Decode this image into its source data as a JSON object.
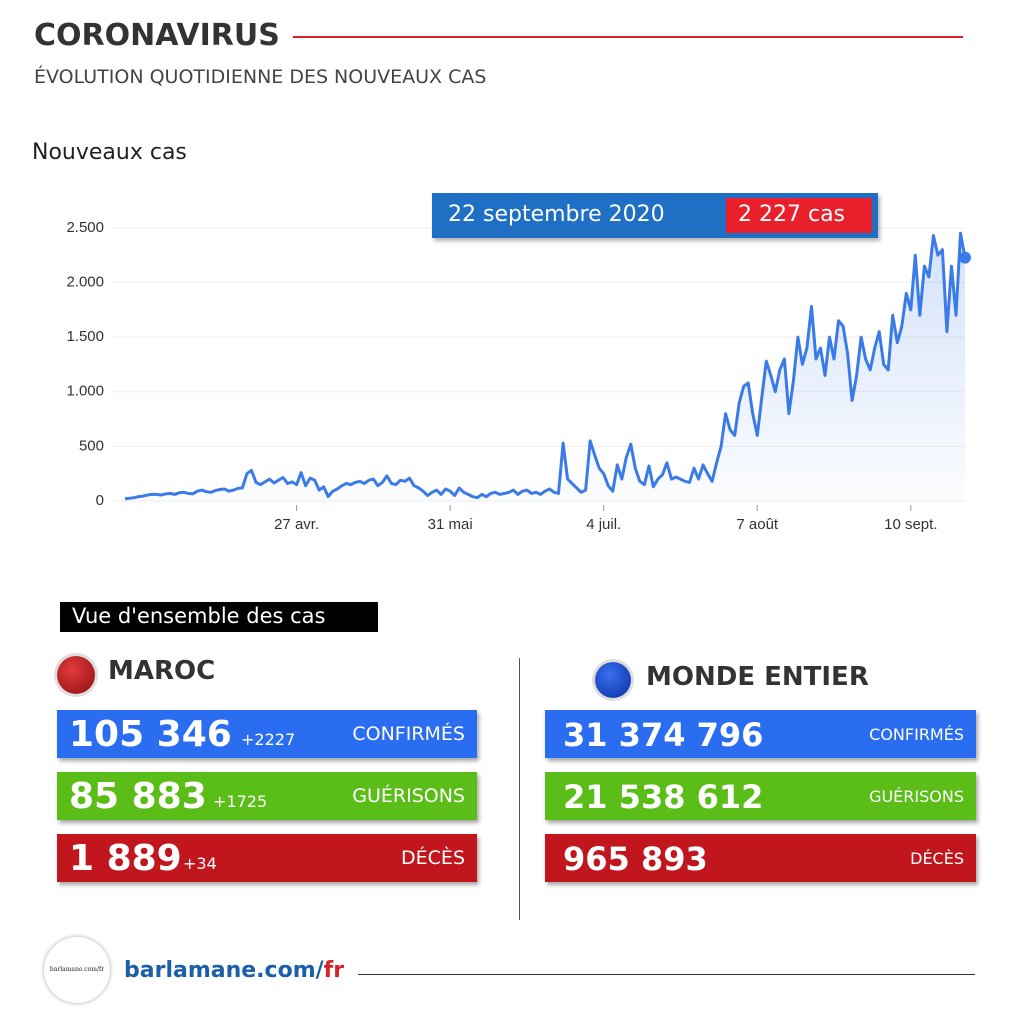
{
  "header": {
    "title": "CORONAVIRUS",
    "subtitle": "ÉVOLUTION QUOTIDIENNE DES NOUVEAUX CAS"
  },
  "chart_data": {
    "type": "line",
    "ylabel": "Nouveaux cas",
    "color": "#3b7be8",
    "grid": true,
    "ylim": [
      0,
      2700
    ],
    "yticks": [
      0,
      500,
      {
        "value": 1000,
        "label": "1.000"
      },
      {
        "value": 1500,
        "label": "1.500"
      },
      {
        "value": 2000,
        "label": "2.000"
      },
      {
        "value": 2500,
        "label": "2.500"
      }
    ],
    "annotation": {
      "date": "22 septembre 2020",
      "value": "2 227 cas"
    },
    "categories": [
      null,
      null,
      null,
      null,
      null,
      null,
      null,
      null,
      null,
      null,
      null,
      null,
      null,
      null,
      null,
      null,
      null,
      null,
      null,
      null,
      null,
      null,
      null,
      null,
      null,
      null,
      null,
      null,
      null,
      null,
      null,
      null,
      null,
      null,
      null,
      null,
      null,
      null,
      "27 avr.",
      null,
      null,
      null,
      null,
      null,
      null,
      null,
      null,
      null,
      null,
      null,
      null,
      null,
      null,
      null,
      null,
      null,
      null,
      null,
      null,
      null,
      null,
      null,
      null,
      null,
      null,
      null,
      null,
      null,
      null,
      null,
      null,
      null,
      "31 mai",
      null,
      null,
      null,
      null,
      null,
      null,
      null,
      null,
      null,
      null,
      null,
      null,
      null,
      null,
      null,
      null,
      null,
      null,
      null,
      null,
      null,
      null,
      null,
      null,
      null,
      null,
      null,
      null,
      null,
      null,
      null,
      null,
      null,
      "4 juil.",
      null,
      null,
      null,
      null,
      null,
      null,
      null,
      null,
      null,
      null,
      null,
      null,
      null,
      null,
      null,
      null,
      null,
      null,
      null,
      null,
      null,
      null,
      null,
      null,
      null,
      null,
      null,
      null,
      null,
      null,
      null,
      null,
      null,
      "7 août",
      null,
      null,
      null,
      null,
      null,
      null,
      null,
      null,
      null,
      null,
      null,
      null,
      null,
      null,
      null,
      null,
      null,
      null,
      null,
      null,
      null,
      null,
      null,
      null,
      null,
      null,
      null,
      null,
      null,
      null,
      null,
      null,
      null,
      "10 sept.",
      null,
      null,
      null,
      null,
      null,
      null,
      null,
      null,
      null,
      null,
      null,
      null
    ],
    "values": [
      20,
      25,
      30,
      40,
      45,
      55,
      60,
      60,
      55,
      65,
      70,
      60,
      75,
      80,
      70,
      65,
      90,
      100,
      85,
      80,
      95,
      105,
      110,
      90,
      100,
      115,
      120,
      250,
      280,
      170,
      150,
      175,
      200,
      165,
      190,
      215,
      160,
      175,
      150,
      260,
      140,
      210,
      190,
      100,
      130,
      40,
      90,
      110,
      140,
      160,
      150,
      170,
      180,
      160,
      190,
      200,
      140,
      170,
      230,
      160,
      150,
      190,
      180,
      210,
      140,
      120,
      90,
      50,
      80,
      100,
      60,
      110,
      90,
      50,
      120,
      80,
      60,
      40,
      30,
      60,
      40,
      70,
      80,
      60,
      70,
      80,
      100,
      60,
      90,
      100,
      70,
      80,
      60,
      90,
      110,
      80,
      70,
      530,
      200,
      160,
      120,
      80,
      100,
      550,
      420,
      300,
      250,
      140,
      90,
      330,
      200,
      400,
      520,
      300,
      180,
      150,
      320,
      130,
      200,
      240,
      350,
      200,
      220,
      200,
      180,
      170,
      300,
      200,
      330,
      250,
      180,
      350,
      500,
      800,
      650,
      600,
      900,
      1050,
      1080,
      800,
      600,
      950,
      1280,
      1150,
      1000,
      1200,
      1300,
      800,
      1100,
      1500,
      1250,
      1400,
      1780,
      1300,
      1400,
      1150,
      1500,
      1300,
      1650,
      1600,
      1350,
      920,
      1150,
      1500,
      1300,
      1200,
      1400,
      1550,
      1250,
      1200,
      1700,
      1450,
      1600,
      1900,
      1750,
      2250,
      1700,
      2150,
      2050,
      2430,
      2250,
      2300,
      1550,
      2150,
      1700,
      2450,
      2227
    ]
  },
  "overview": {
    "title": "Vue d'ensemble des cas",
    "maroc": {
      "name": "MAROC",
      "rows": [
        {
          "value": "105 346",
          "delta": "+2227",
          "label": "CONFIRMÉS"
        },
        {
          "value": "85 883",
          "delta": "+1725",
          "label": "GUÉRISONS"
        },
        {
          "value": "1 889",
          "delta": "+34",
          "label": "DÉCÈS"
        }
      ]
    },
    "monde": {
      "name": "MONDE ENTIER",
      "rows": [
        {
          "value": "31 374 796",
          "label": "CONFIRMÉS"
        },
        {
          "value": "21 538 612",
          "label": "GUÉRISONS"
        },
        {
          "value": "965 893",
          "label": "DÉCÈS"
        }
      ]
    }
  },
  "footer": {
    "logo": "barlamane.com/fr",
    "site": "barlamane.com/",
    "suffix": "fr"
  }
}
